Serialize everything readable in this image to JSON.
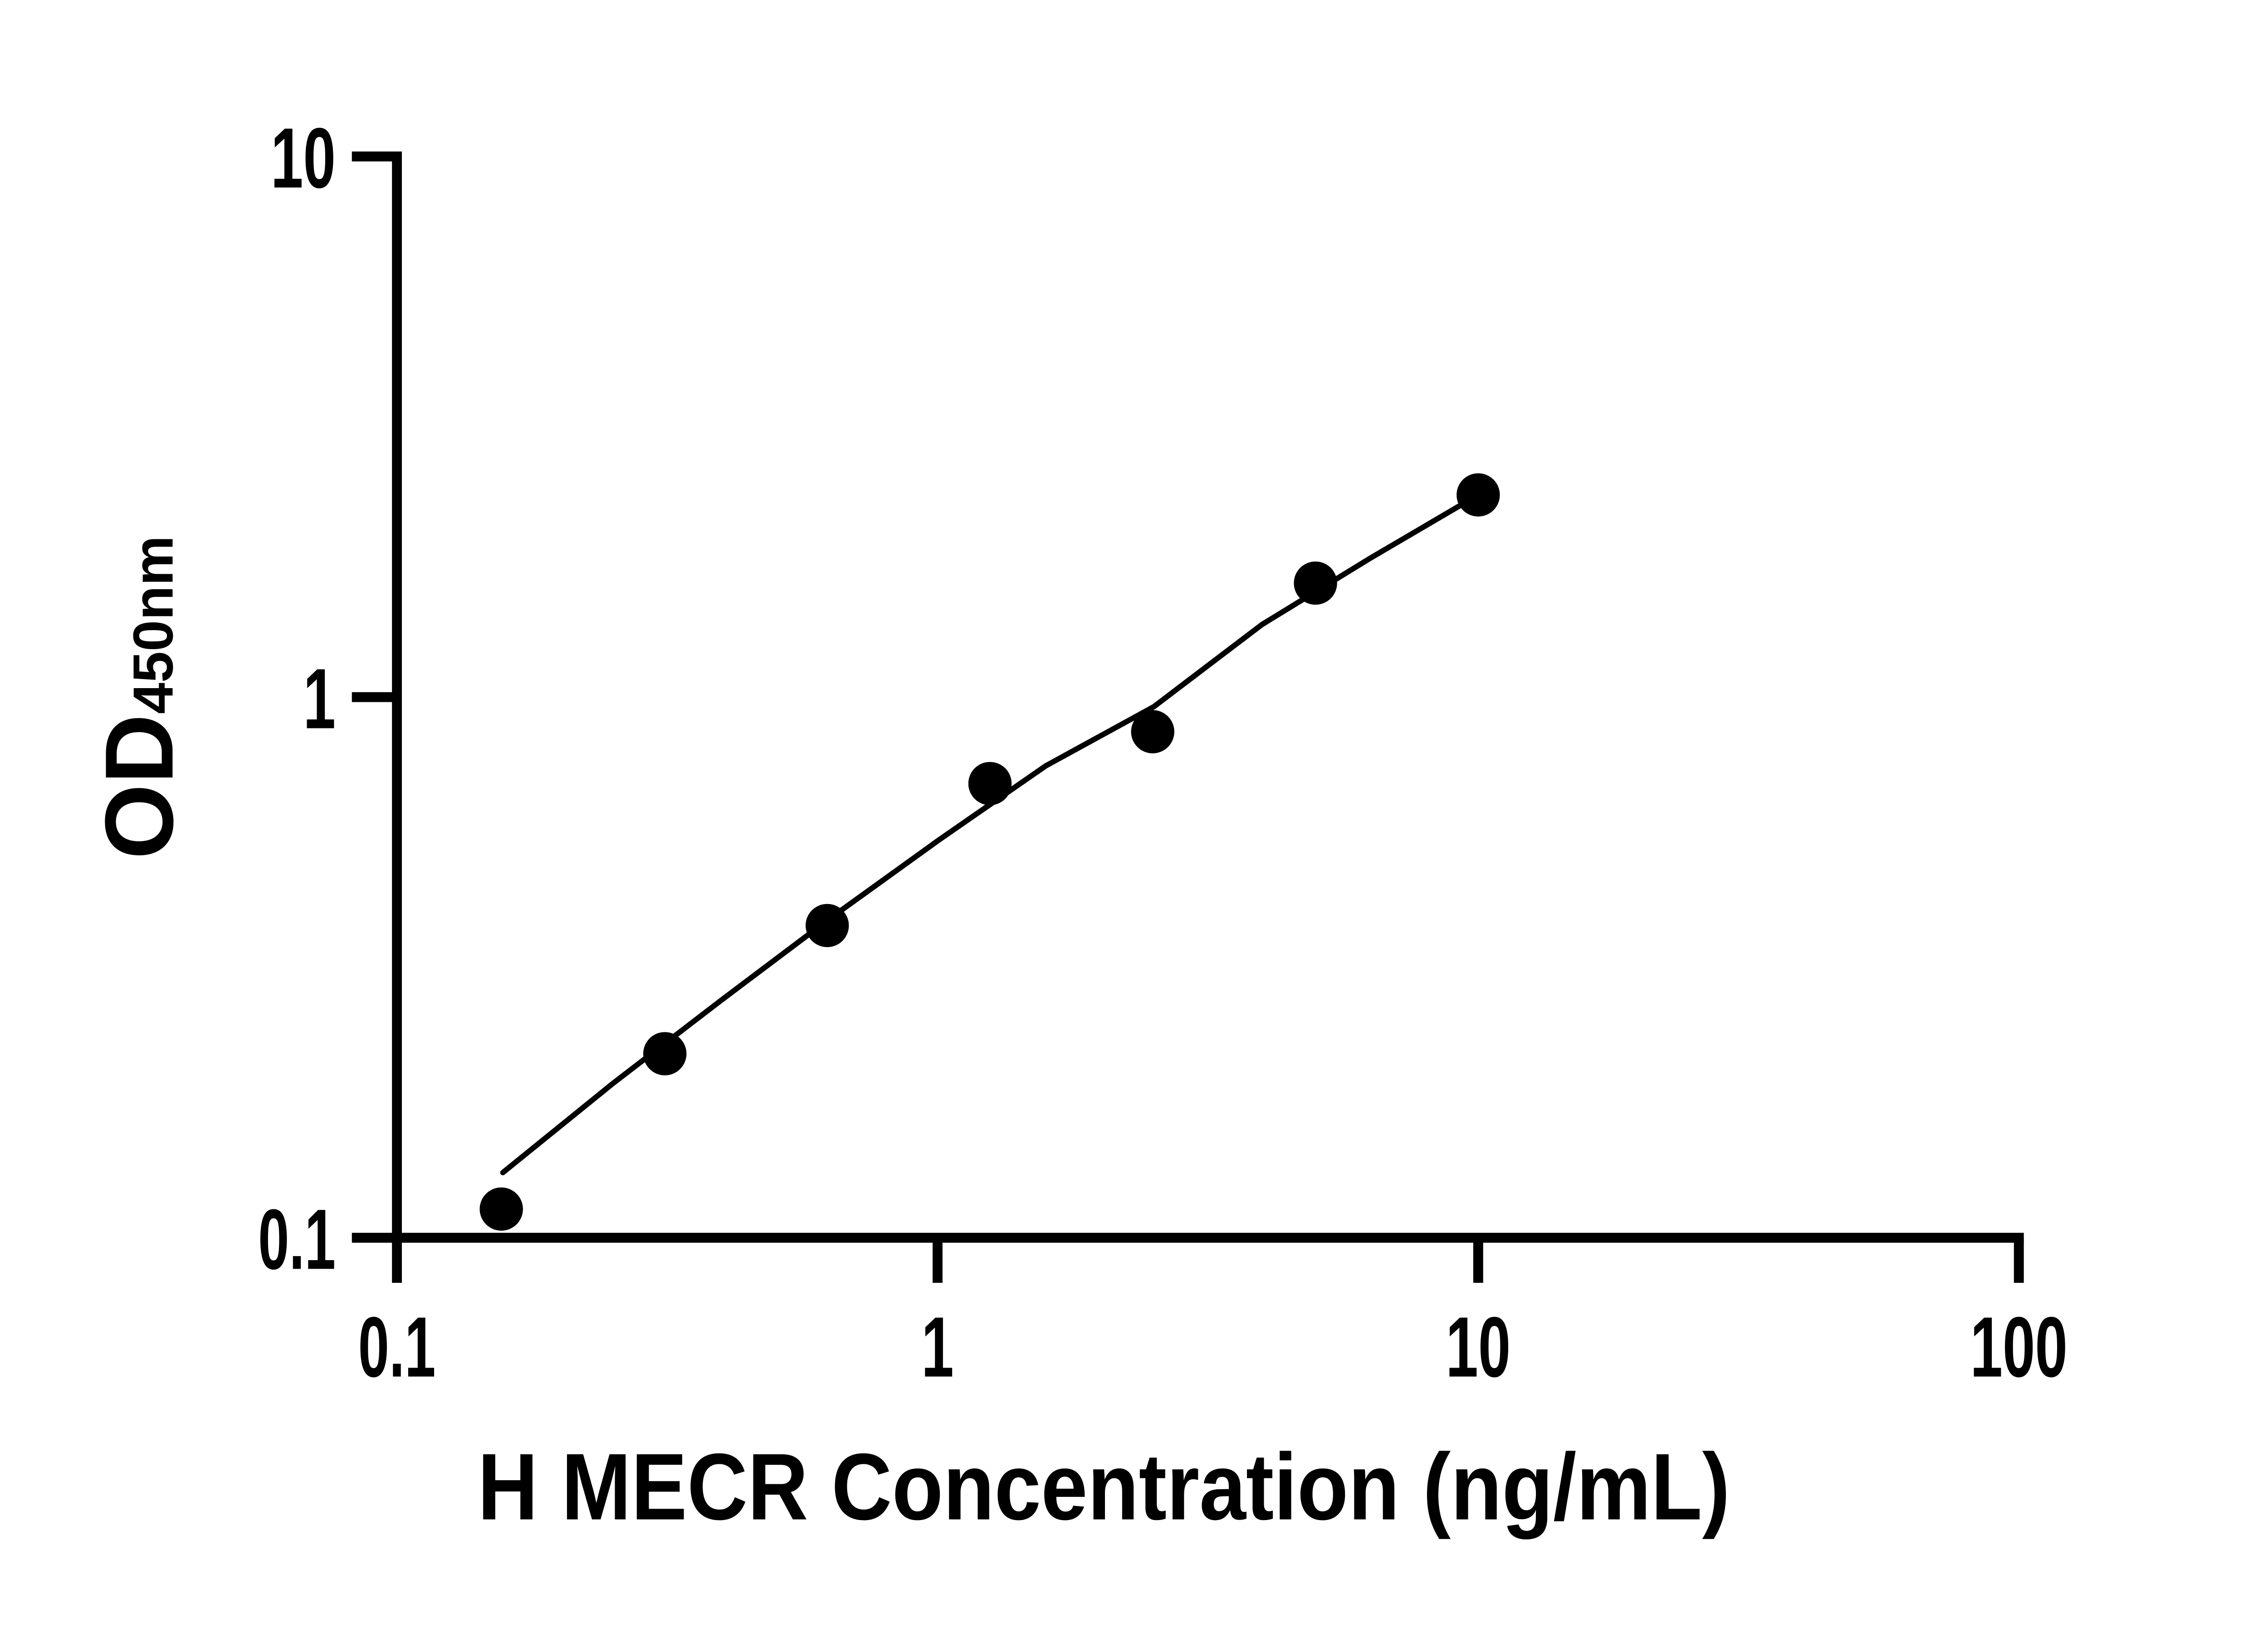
{
  "figure": {
    "background_color": "#ffffff",
    "ink_color": "#000000"
  },
  "chart_data": {
    "type": "scatter",
    "title": "",
    "xlabel": "H MECR Concentration (ng/mL)",
    "ylabel": "OD",
    "ylabel_subscript": "450nm",
    "x_scale": "log10",
    "y_scale": "log10",
    "xlim": [
      0.1,
      100
    ],
    "ylim": [
      0.1,
      10
    ],
    "grid": false,
    "legend": "none",
    "x_ticks": [
      {
        "value": 0.1,
        "label": "0.1"
      },
      {
        "value": 1,
        "label": "1"
      },
      {
        "value": 10,
        "label": "10"
      },
      {
        "value": 100,
        "label": "100"
      }
    ],
    "y_ticks": [
      {
        "value": 0.1,
        "label": "0.1"
      },
      {
        "value": 1,
        "label": "1"
      },
      {
        "value": 10,
        "label": "10"
      }
    ],
    "series": [
      {
        "name": "standard-curve-points",
        "marker": "filled-circle",
        "color": "#000000",
        "points": [
          {
            "x": 0.156,
            "y": 0.113
          },
          {
            "x": 0.313,
            "y": 0.219
          },
          {
            "x": 0.625,
            "y": 0.378
          },
          {
            "x": 1.25,
            "y": 0.692
          },
          {
            "x": 2.5,
            "y": 0.863
          },
          {
            "x": 5,
            "y": 1.625
          },
          {
            "x": 10,
            "y": 2.366
          }
        ]
      }
    ],
    "trend_line": {
      "name": "fit-line",
      "color": "#000000",
      "points": [
        [
          0.157,
          0.132
        ],
        [
          0.251,
          0.193
        ],
        [
          0.398,
          0.275
        ],
        [
          0.631,
          0.389
        ],
        [
          1.0,
          0.542
        ],
        [
          1.585,
          0.746
        ],
        [
          2.512,
          0.96
        ],
        [
          3.981,
          1.362
        ],
        [
          6.31,
          1.806
        ],
        [
          10.0,
          2.366
        ]
      ]
    }
  }
}
